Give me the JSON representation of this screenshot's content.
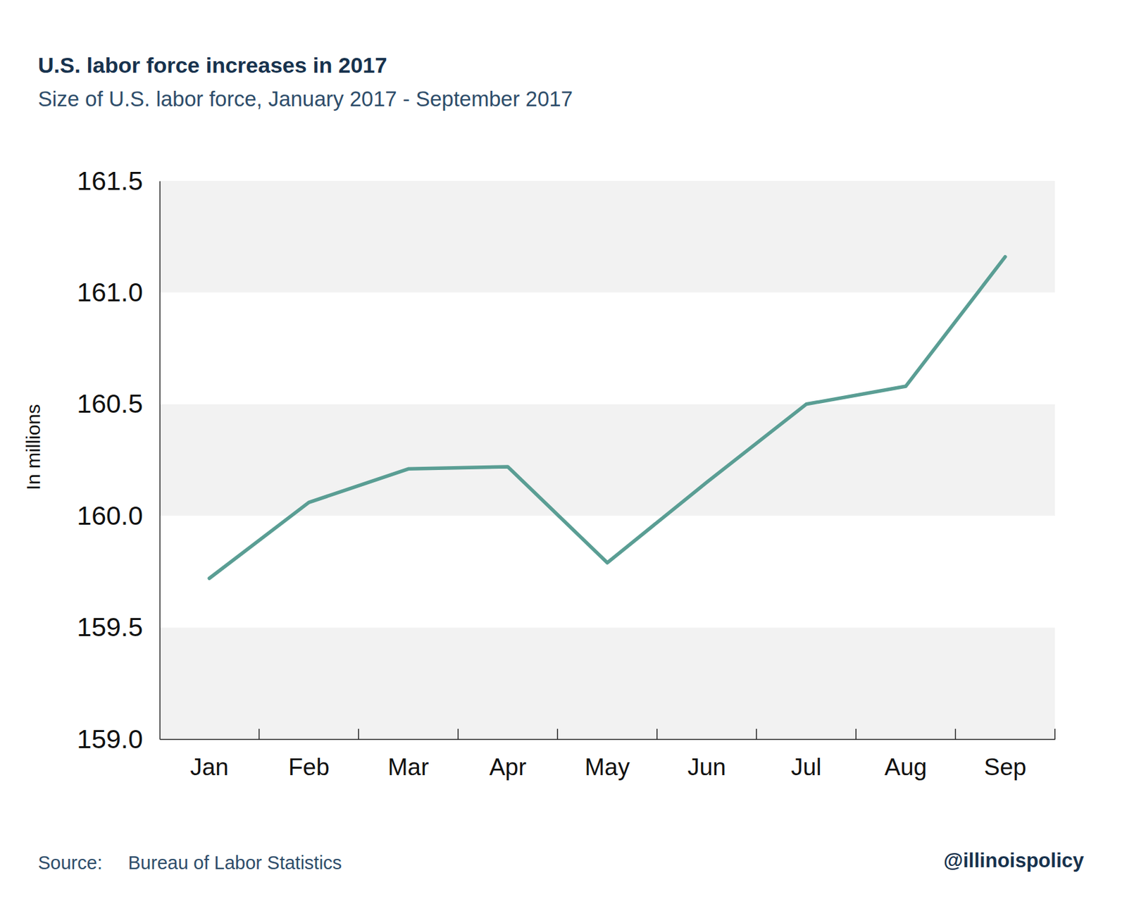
{
  "chart_data": {
    "type": "line",
    "title": "U.S. labor force increases in 2017",
    "subtitle": "Size of U.S. labor force, January 2017 - September 2017",
    "y_label": "In millions",
    "source_label": "Source:",
    "source": "Bureau of Labor Statistics",
    "credit": "@illinoispolicy",
    "categories": [
      "Jan",
      "Feb",
      "Mar",
      "Apr",
      "May",
      "Jun",
      "Jul",
      "Aug",
      "Sep"
    ],
    "values": [
      159.72,
      160.06,
      160.21,
      160.22,
      159.79,
      160.15,
      160.5,
      160.58,
      161.16
    ],
    "color": "#5a9e94",
    "ylim": [
      159,
      161.5
    ],
    "yticks": [
      {
        "value": 159,
        "label": "159.0"
      },
      159.5,
      {
        "value": 160,
        "label": "160.0"
      },
      160.5,
      {
        "value": 161,
        "label": "161.0"
      },
      161.5
    ],
    "grid": true
  }
}
